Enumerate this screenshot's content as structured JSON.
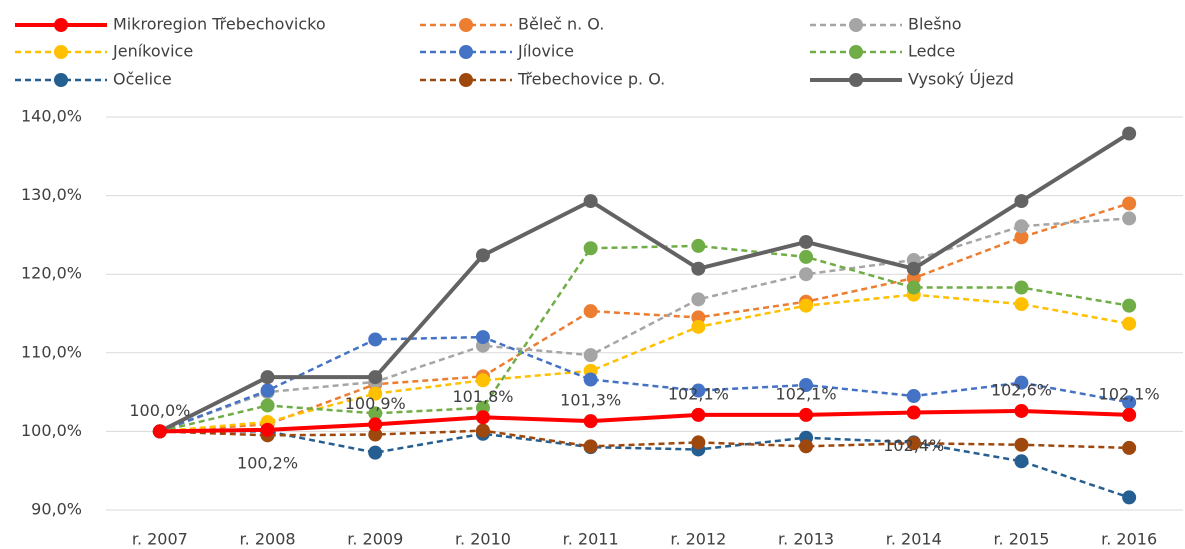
{
  "chart_data": {
    "type": "line",
    "categories": [
      "r. 2007",
      "r. 2008",
      "r. 2009",
      "r. 2010",
      "r. 2011",
      "r. 2012",
      "r. 2013",
      "r. 2014",
      "r. 2015",
      "r. 2016"
    ],
    "ylim": [
      90,
      140
    ],
    "yticks": [
      {
        "value": 90,
        "label": "90,0%"
      },
      {
        "value": 100,
        "label": "100,0%"
      },
      {
        "value": 110,
        "label": "110,0%"
      },
      {
        "value": 120,
        "label": "120,0%"
      },
      {
        "value": 130,
        "label": "130,0%"
      },
      {
        "value": 140,
        "label": "140,0%"
      }
    ],
    "grid": true,
    "legend": "top",
    "series": [
      {
        "name": "Mikroregion Třebechovicko",
        "color": "#ff0000",
        "style": "solid",
        "values": [
          100,
          100.2,
          100.9,
          101.8,
          101.3,
          102.1,
          102.1,
          102.4,
          102.6,
          102.1
        ],
        "value_labels": [
          "100,0%",
          "100,2%",
          "100,9%",
          "101,8%",
          "101,3%",
          "102,1%",
          "102,1%",
          "102,4%",
          "102,6%",
          "102,1%"
        ]
      },
      {
        "name": "Běleč n. O.",
        "color": "#ed7d31",
        "style": "dashed",
        "values": [
          100,
          100.9,
          106,
          107,
          115.3,
          114.5,
          116.5,
          119.5,
          124.7,
          129
        ]
      },
      {
        "name": "Blešno",
        "color": "#a5a5a5",
        "style": "dashed",
        "values": [
          100,
          105,
          106.3,
          110.9,
          109.7,
          116.8,
          120,
          121.8,
          126.1,
          127.1
        ]
      },
      {
        "name": "Jeníkovice",
        "color": "#ffc000",
        "style": "dashed",
        "values": [
          100,
          101.2,
          104.8,
          106.5,
          107.7,
          113.3,
          116,
          117.4,
          116.2,
          113.7
        ]
      },
      {
        "name": "Jílovice",
        "color": "#4472c4",
        "style": "dashed",
        "values": [
          100,
          105.2,
          111.7,
          112,
          106.6,
          105.2,
          105.9,
          104.5,
          106.2,
          103.7
        ]
      },
      {
        "name": "Ledce",
        "color": "#70ad47",
        "style": "dashed",
        "values": [
          100,
          103.3,
          102.3,
          103,
          123.3,
          123.6,
          122.2,
          118.3,
          118.3,
          116
        ]
      },
      {
        "name": "Očelice",
        "color": "#255e91",
        "style": "dashed",
        "values": [
          100,
          100,
          97.3,
          99.7,
          98,
          97.7,
          99.2,
          98.6,
          96.2,
          91.6
        ]
      },
      {
        "name": "Třebechovice p. O.",
        "color": "#9e480e",
        "style": "dashed",
        "values": [
          100,
          99.5,
          99.6,
          100.1,
          98.1,
          98.6,
          98.1,
          98.5,
          98.3,
          97.9
        ]
      },
      {
        "name": "Vysoký Újezd",
        "color": "#636363",
        "style": "solid",
        "values": [
          100,
          106.9,
          106.9,
          122.4,
          129.3,
          120.7,
          124.1,
          120.7,
          129.3,
          137.9
        ]
      }
    ]
  }
}
